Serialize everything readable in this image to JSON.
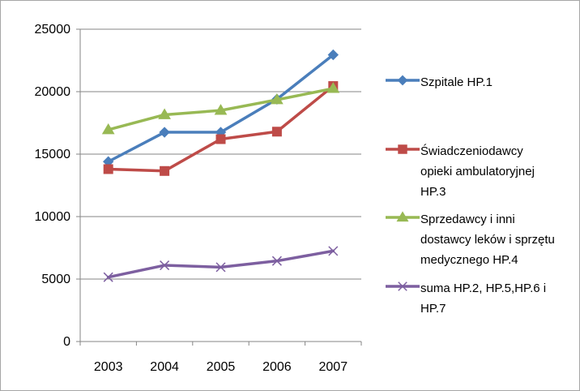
{
  "chart_data": {
    "type": "line",
    "title": "",
    "xlabel": "",
    "ylabel": "",
    "categories": [
      "2003",
      "2004",
      "2005",
      "2006",
      "2007"
    ],
    "ylim": [
      0,
      25000
    ],
    "yticks": [
      "0",
      "5000",
      "10000",
      "15000",
      "20000",
      "25000"
    ],
    "grid": "horizontal",
    "legend_position": "right",
    "series": [
      {
        "name": "Szpitale HP.1",
        "values": [
          14400,
          16750,
          16750,
          19400,
          22950
        ],
        "color": "#4a7ebb",
        "marker": "diamond"
      },
      {
        "name": "Świadczeniodawcy opieki ambulatoryjnej HP.3",
        "values": [
          13800,
          13650,
          16200,
          16800,
          20450
        ],
        "color": "#be4b48",
        "marker": "square"
      },
      {
        "name": "Sprzedawcy i inni dostawcy leków i sprzętu medycznego HP.4",
        "values": [
          16950,
          18150,
          18500,
          19350,
          20250
        ],
        "color": "#98b954",
        "marker": "triangle"
      },
      {
        "name": "suma HP.2, HP.5,HP.6 i HP.7",
        "values": [
          5150,
          6100,
          5950,
          6450,
          7250
        ],
        "color": "#7d5fa0",
        "marker": "x"
      }
    ]
  },
  "legend": {
    "items": [
      {
        "text": "Szpitale HP.1"
      },
      {
        "text": "Świadczeniodawcy\nopieki ambulatoryjnej\nHP.3"
      },
      {
        "text": "Sprzedawcy i inni\ndostawcy leków i sprzętu\nmedycznego HP.4"
      },
      {
        "text": "suma HP.2, HP.5,HP.6 i\nHP.7"
      }
    ]
  }
}
